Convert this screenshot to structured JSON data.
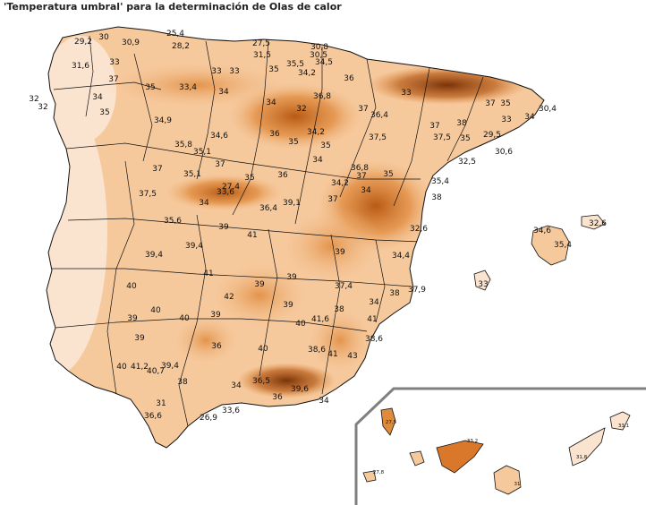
{
  "title": "'Temperatura umbral' para la determinación de Olas de calor",
  "peninsula_labels": [
    "29,2",
    "30",
    "30,9",
    "25,4",
    "28,2",
    "27,5",
    "31,5",
    "30,8",
    "30,5",
    "31,6",
    "33",
    "33",
    "33",
    "35",
    "35,5",
    "34,5",
    "34,2",
    "36",
    "37",
    "34",
    "35",
    "33,4",
    "34",
    "34",
    "36,8",
    "33",
    "32",
    "37",
    "35",
    "32",
    "37",
    "35",
    "34,9",
    "32",
    "34,6",
    "36",
    "34,2",
    "36,4",
    "37",
    "38",
    "35",
    "33",
    "34",
    "30,4",
    "35,8",
    "35,1",
    "35",
    "37,5",
    "37,5",
    "35",
    "29,5",
    "30,6",
    "37",
    "35,1",
    "37",
    "35",
    "36",
    "34",
    "36,8",
    "37",
    "32,5",
    "35",
    "37,5",
    "33,6",
    "27,4",
    "34,2",
    "34",
    "35,4",
    "34",
    "36,4",
    "39,1",
    "37",
    "38",
    "35,6",
    "32,6",
    "39",
    "39,4",
    "41",
    "39,4",
    "39",
    "34,4",
    "41",
    "40",
    "39",
    "39",
    "37,4",
    "37,9",
    "38",
    "42",
    "39",
    "40",
    "40",
    "39",
    "40",
    "34",
    "39",
    "40",
    "38",
    "41",
    "41,6",
    "39",
    "38,6",
    "36",
    "38,6",
    "41",
    "43",
    "40",
    "41,2",
    "40,7",
    "39,4",
    "38",
    "36,5",
    "34",
    "36",
    "39,6",
    "34",
    "31",
    "36,6",
    "26,9",
    "33,6"
  ],
  "balearic_labels": [
    "34,6",
    "35,4",
    "32,6",
    "33"
  ],
  "canary_labels": [
    "27,5",
    "33,2",
    "27,8",
    "31",
    "31,8",
    "33,1"
  ],
  "colors": {
    "background": "#ffffff",
    "lowest": "#fbe4cf",
    "low": "#f6c99d",
    "mid": "#eda765",
    "high": "#d9782a",
    "highest": "#a94e0f",
    "border": "#111111",
    "inset_frame": "#808080"
  }
}
